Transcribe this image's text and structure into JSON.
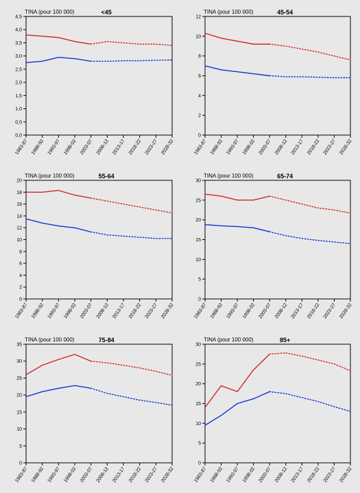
{
  "global": {
    "ylabel": "TINA (pour 100 000)",
    "x_categories": [
      "1983-87",
      "1988-92",
      "1993-97",
      "1998-02",
      "2003-07",
      "2008-12",
      "2013-17",
      "2018-22",
      "2023-27",
      "2028-32"
    ],
    "series_colors": {
      "red": "#d62222",
      "blue": "#1030d6"
    },
    "axis_color": "#000000",
    "background_color": "#e8e8e8",
    "plot_background": "#e8e8e8",
    "font_family": "Arial, sans-serif",
    "label_fontsize": 8,
    "tick_fontsize": 7,
    "title_fontsize": 9,
    "line_width": 1.4,
    "dash_pattern": "1.5,2.5",
    "solid_count": 5
  },
  "panels": [
    {
      "title": "<45",
      "ylim": [
        0,
        4.5
      ],
      "ytick_step": 0.5,
      "y_decimals": 1,
      "series": {
        "red": [
          3.8,
          3.75,
          3.7,
          3.55,
          3.45,
          3.55,
          3.5,
          3.45,
          3.45,
          3.4
        ],
        "blue": [
          2.75,
          2.8,
          2.95,
          2.9,
          2.8,
          2.8,
          2.82,
          2.82,
          2.84,
          2.85
        ]
      }
    },
    {
      "title": "45-54",
      "ylim": [
        0,
        12
      ],
      "ytick_step": 2,
      "y_decimals": 0,
      "series": {
        "red": [
          10.3,
          9.8,
          9.5,
          9.2,
          9.2,
          9.0,
          8.7,
          8.4,
          8.0,
          7.6
        ],
        "blue": [
          7.0,
          6.6,
          6.4,
          6.2,
          6.0,
          5.9,
          5.9,
          5.85,
          5.8,
          5.8
        ]
      }
    },
    {
      "title": "55-64",
      "ylim": [
        0,
        20
      ],
      "ytick_step": 2,
      "y_decimals": 0,
      "series": {
        "red": [
          18.0,
          18.0,
          18.3,
          17.5,
          17.0,
          16.5,
          16.0,
          15.5,
          15.0,
          14.5
        ],
        "blue": [
          13.5,
          12.8,
          12.3,
          12.0,
          11.3,
          10.8,
          10.6,
          10.4,
          10.2,
          10.2
        ]
      }
    },
    {
      "title": "65-74",
      "ylim": [
        0,
        30
      ],
      "ytick_step": 5,
      "y_decimals": 0,
      "series": {
        "red": [
          26.5,
          26.0,
          25.0,
          25.0,
          26.0,
          25.0,
          24.0,
          23.0,
          22.5,
          21.7
        ],
        "blue": [
          18.8,
          18.5,
          18.3,
          18.0,
          17.0,
          16.0,
          15.3,
          14.8,
          14.4,
          14.0
        ]
      }
    },
    {
      "title": "75-84",
      "ylim": [
        0,
        35
      ],
      "ytick_step": 5,
      "y_decimals": 0,
      "series": {
        "red": [
          26.0,
          28.8,
          30.5,
          32.0,
          30.0,
          29.5,
          28.8,
          28.0,
          27.0,
          25.8
        ],
        "blue": [
          19.5,
          21.0,
          22.0,
          22.8,
          22.0,
          20.5,
          19.5,
          18.5,
          17.8,
          17.0
        ]
      }
    },
    {
      "title": "85+",
      "ylim": [
        0,
        30
      ],
      "ytick_step": 5,
      "y_decimals": 0,
      "series": {
        "red": [
          14.0,
          19.5,
          18.0,
          23.5,
          27.5,
          27.8,
          27.0,
          26.0,
          25.0,
          23.3
        ],
        "blue": [
          9.5,
          12.0,
          15.0,
          16.2,
          18.0,
          17.5,
          16.5,
          15.5,
          14.2,
          13.0
        ]
      }
    }
  ]
}
